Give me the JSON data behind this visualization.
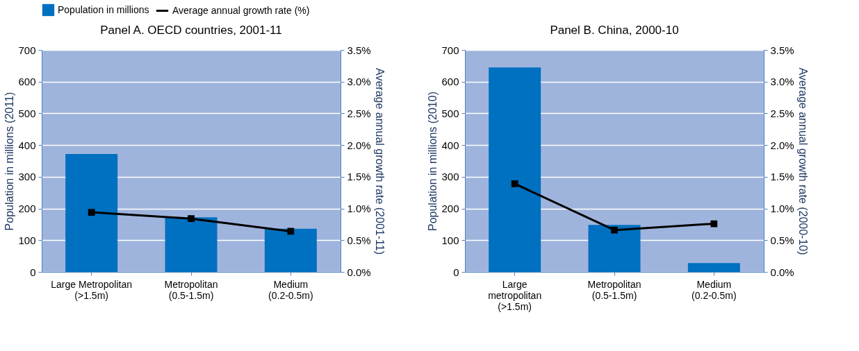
{
  "chart_data": [
    {
      "type": "bar",
      "title": "Panel A. OECD countries, 2001-11",
      "categories": [
        "Large Metropolitan\n(>1.5m)",
        "Metropolitan\n(0.5-1.5m)",
        "Medium\n(0.2-0.5m)"
      ],
      "series": [
        {
          "name": "Population in millions",
          "color": "#0070c0",
          "values": [
            372,
            172,
            136
          ]
        },
        {
          "name": "Average annual growth rate (%)",
          "type": "line",
          "axis": "y2",
          "color": "#000000",
          "values": [
            0.94,
            0.84,
            0.64
          ]
        }
      ],
      "ylabel": "Population in millions (2011)",
      "y2label": "Average annual growth rate (2001-11)",
      "ylim": [
        0,
        700
      ],
      "yticks": [
        0,
        100,
        200,
        300,
        400,
        500,
        600,
        700
      ],
      "y2lim": [
        0,
        3.5
      ],
      "y2ticks": [
        {
          "value": 0,
          "label": "0.0%"
        },
        {
          "value": 0.5,
          "label": "0.5%"
        },
        {
          "value": 1,
          "label": "1.0%"
        },
        {
          "value": 1.5,
          "label": "1.5%"
        },
        {
          "value": 2,
          "label": "2.0%"
        },
        {
          "value": 2.5,
          "label": "2.5%"
        },
        {
          "value": 3,
          "label": "3.0%"
        },
        {
          "value": 3.5,
          "label": "3.5%"
        }
      ],
      "grid": "y",
      "legend": "top",
      "marker": "square"
    },
    {
      "type": "bar",
      "title": "Panel B. China, 2000-10",
      "categories": [
        "Large\nmetropolitan\n(>1.5m)",
        "Metropolitan\n(0.5-1.5m)",
        "Medium\n(0.2-0.5m)"
      ],
      "series": [
        {
          "name": "Population in millions",
          "color": "#0070c0",
          "values": [
            645,
            148,
            28
          ]
        },
        {
          "name": "Average annual growth rate (%)",
          "type": "line",
          "axis": "y2",
          "color": "#000000",
          "values": [
            1.39,
            0.66,
            0.76
          ]
        }
      ],
      "ylabel": "Population in millions  (2010)",
      "y2label": "Average annual growth rate (2000-10)",
      "ylim": [
        0,
        700
      ],
      "yticks": [
        0,
        100,
        200,
        300,
        400,
        500,
        600,
        700
      ],
      "y2lim": [
        0,
        3.5
      ],
      "y2ticks": [
        {
          "value": 0,
          "label": "0.0%"
        },
        {
          "value": 0.5,
          "label": "0.5%"
        },
        {
          "value": 1,
          "label": "1.0%"
        },
        {
          "value": 1.5,
          "label": "1.5%"
        },
        {
          "value": 2,
          "label": "2.0%"
        },
        {
          "value": 2.5,
          "label": "2.5%"
        },
        {
          "value": 3,
          "label": "3.0%"
        },
        {
          "value": 3.5,
          "label": "3.5%"
        }
      ],
      "grid": "y",
      "legend": "top",
      "marker": "square"
    }
  ]
}
